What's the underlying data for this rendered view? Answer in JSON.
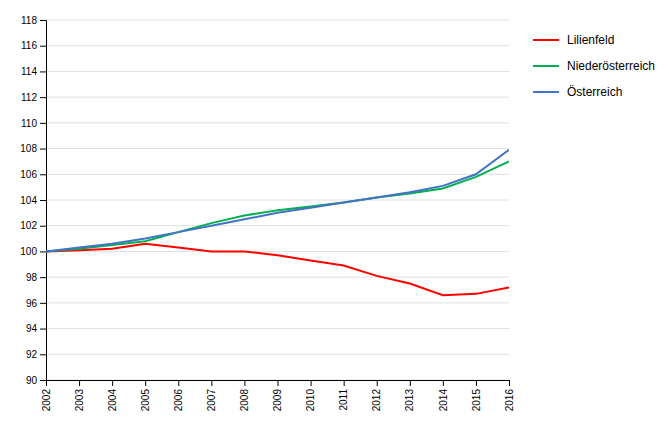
{
  "chart_data": {
    "type": "line",
    "x": [
      2002,
      2003,
      2004,
      2005,
      2006,
      2007,
      2008,
      2009,
      2010,
      2011,
      2012,
      2013,
      2014,
      2015,
      2016
    ],
    "xlim": [
      2002,
      2016
    ],
    "xticks": [
      2002,
      2003,
      2004,
      2005,
      2006,
      2007,
      2008,
      2009,
      2010,
      2011,
      2012,
      2013,
      2014,
      2015,
      2016
    ],
    "ylim": [
      90,
      118
    ],
    "yticks": [
      90,
      92,
      94,
      96,
      98,
      100,
      102,
      104,
      106,
      108,
      110,
      112,
      114,
      116,
      118
    ],
    "grid": true,
    "legend": "right",
    "series": [
      {
        "name": "Lilienfeld",
        "color": "#FF0000",
        "values": [
          100.0,
          100.1,
          100.2,
          100.6,
          100.3,
          100.0,
          100.0,
          99.7,
          99.3,
          98.9,
          98.1,
          97.5,
          96.6,
          96.7,
          97.2
        ]
      },
      {
        "name": "Niederösterreich",
        "color": "#00B050",
        "values": [
          100.0,
          100.2,
          100.5,
          100.8,
          101.5,
          102.2,
          102.8,
          103.2,
          103.5,
          103.8,
          104.2,
          104.5,
          104.9,
          105.8,
          107.0
        ]
      },
      {
        "name": "Österreich",
        "color": "#4472C4",
        "values": [
          100.0,
          100.3,
          100.6,
          101.0,
          101.5,
          102.0,
          102.5,
          103.0,
          103.4,
          103.8,
          104.2,
          104.6,
          105.1,
          106.0,
          107.9
        ]
      }
    ]
  }
}
